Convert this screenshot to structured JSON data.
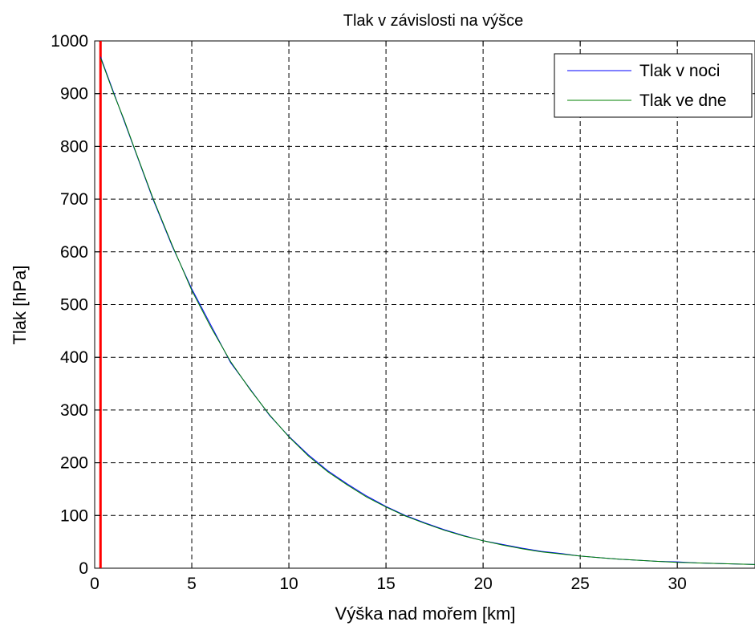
{
  "chart_data": {
    "type": "line",
    "title": "Tlak v závislosti na výšce",
    "xlabel": "Výška nad mořem [km]",
    "ylabel": "Tlak [hPa]",
    "xlim": [
      0,
      34
    ],
    "ylim": [
      0,
      1000
    ],
    "xticks": [
      0,
      5,
      10,
      15,
      20,
      25,
      30
    ],
    "yticks": [
      0,
      100,
      200,
      300,
      400,
      500,
      600,
      700,
      800,
      900,
      1000
    ],
    "grid": true,
    "legend_position": "top-right",
    "vertical_marker": {
      "x": 0.3,
      "color": "#ff0000"
    },
    "series": [
      {
        "name": "Tlak v noci",
        "color": "#0000ff",
        "x": [
          0.3,
          1,
          1.5,
          2,
          3,
          4,
          5,
          6,
          7,
          8,
          9,
          10,
          11,
          12,
          13,
          14,
          15,
          16,
          17,
          18,
          19,
          20,
          21,
          22,
          23,
          24,
          25,
          26,
          27,
          28,
          29,
          30,
          31,
          32,
          33,
          34
        ],
        "y": [
          970,
          900,
          850,
          800,
          700,
          610,
          530,
          460,
          390,
          340,
          290,
          250,
          215,
          185,
          160,
          137,
          117,
          100,
          86,
          73,
          62,
          52,
          45,
          38,
          32,
          28,
          23,
          20,
          17,
          15,
          13,
          12,
          10,
          9,
          8,
          7
        ]
      },
      {
        "name": "Tlak ve dne",
        "color": "#008000",
        "x": [
          0.3,
          1,
          1.5,
          2,
          3,
          4,
          5,
          6,
          7,
          8,
          9,
          10,
          11,
          12,
          13,
          14,
          15,
          16,
          17,
          18,
          19,
          20,
          21,
          22,
          23,
          24,
          25,
          26,
          27,
          28,
          29,
          30,
          31,
          32,
          33,
          34
        ],
        "y": [
          968,
          898,
          852,
          801,
          702,
          612,
          527,
          456,
          392,
          339,
          291,
          249,
          213,
          183,
          158,
          135,
          116,
          99,
          85,
          72,
          61,
          52,
          44,
          37,
          31,
          27,
          23,
          20,
          17,
          15,
          13,
          11,
          10,
          9,
          8,
          7
        ]
      }
    ]
  }
}
